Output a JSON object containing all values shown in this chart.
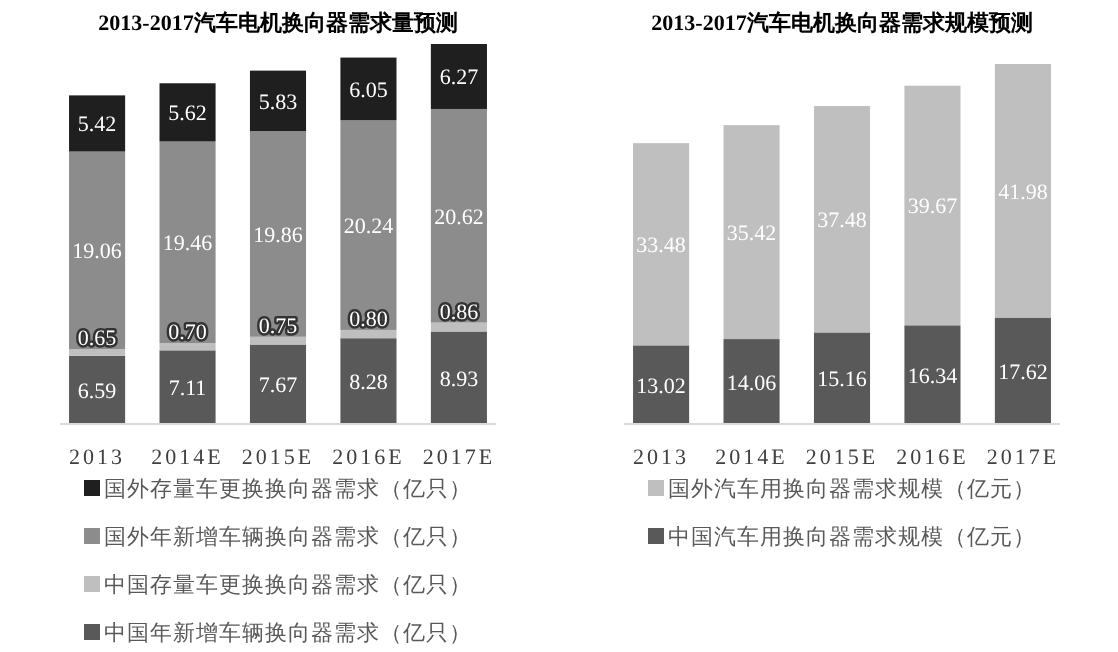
{
  "chart_data": [
    {
      "type": "bar",
      "title": "2013-2017汽车电机换向器需求量预测",
      "categories": [
        "2013",
        "2014E",
        "2015E",
        "2016E",
        "2017E"
      ],
      "stacked": true,
      "data_labels": true,
      "legend": "bottom",
      "series": [
        {
          "name": "中国年新增车辆换向器需求（亿只）",
          "color": "#595959",
          "values": [
            6.59,
            7.11,
            7.67,
            8.28,
            8.93
          ]
        },
        {
          "name": "中国存量车更换换向器需求（亿只）",
          "color": "#bfbfbf",
          "values": [
            0.65,
            0.7,
            0.75,
            0.8,
            0.86
          ],
          "value_labels": [
            "0.65",
            "0.70",
            "0.75",
            "0.80",
            "0.86"
          ]
        },
        {
          "name": "国外年新增车辆换向器需求（亿只）",
          "color": "#8c8c8c",
          "values": [
            19.06,
            19.46,
            19.86,
            20.24,
            20.62
          ]
        },
        {
          "name": "国外存量车更换换向器需求（亿只）",
          "color": "#1f1f1f",
          "values": [
            5.42,
            5.62,
            5.83,
            6.05,
            6.27
          ]
        }
      ]
    },
    {
      "type": "bar",
      "title": "2013-2017汽车电机换向器需求规模预测",
      "categories": [
        "2013",
        "2014E",
        "2015E",
        "2016E",
        "2017E"
      ],
      "stacked": true,
      "data_labels": true,
      "legend": "bottom",
      "series": [
        {
          "name": "中国汽车用换向器需求规模（亿元）",
          "color": "#595959",
          "values": [
            13.02,
            14.06,
            15.16,
            16.34,
            17.62
          ]
        },
        {
          "name": "国外汽车用换向器需求规模（亿元）",
          "color": "#bfbfbf",
          "values": [
            33.48,
            35.42,
            37.48,
            39.67,
            41.98
          ]
        }
      ]
    }
  ]
}
